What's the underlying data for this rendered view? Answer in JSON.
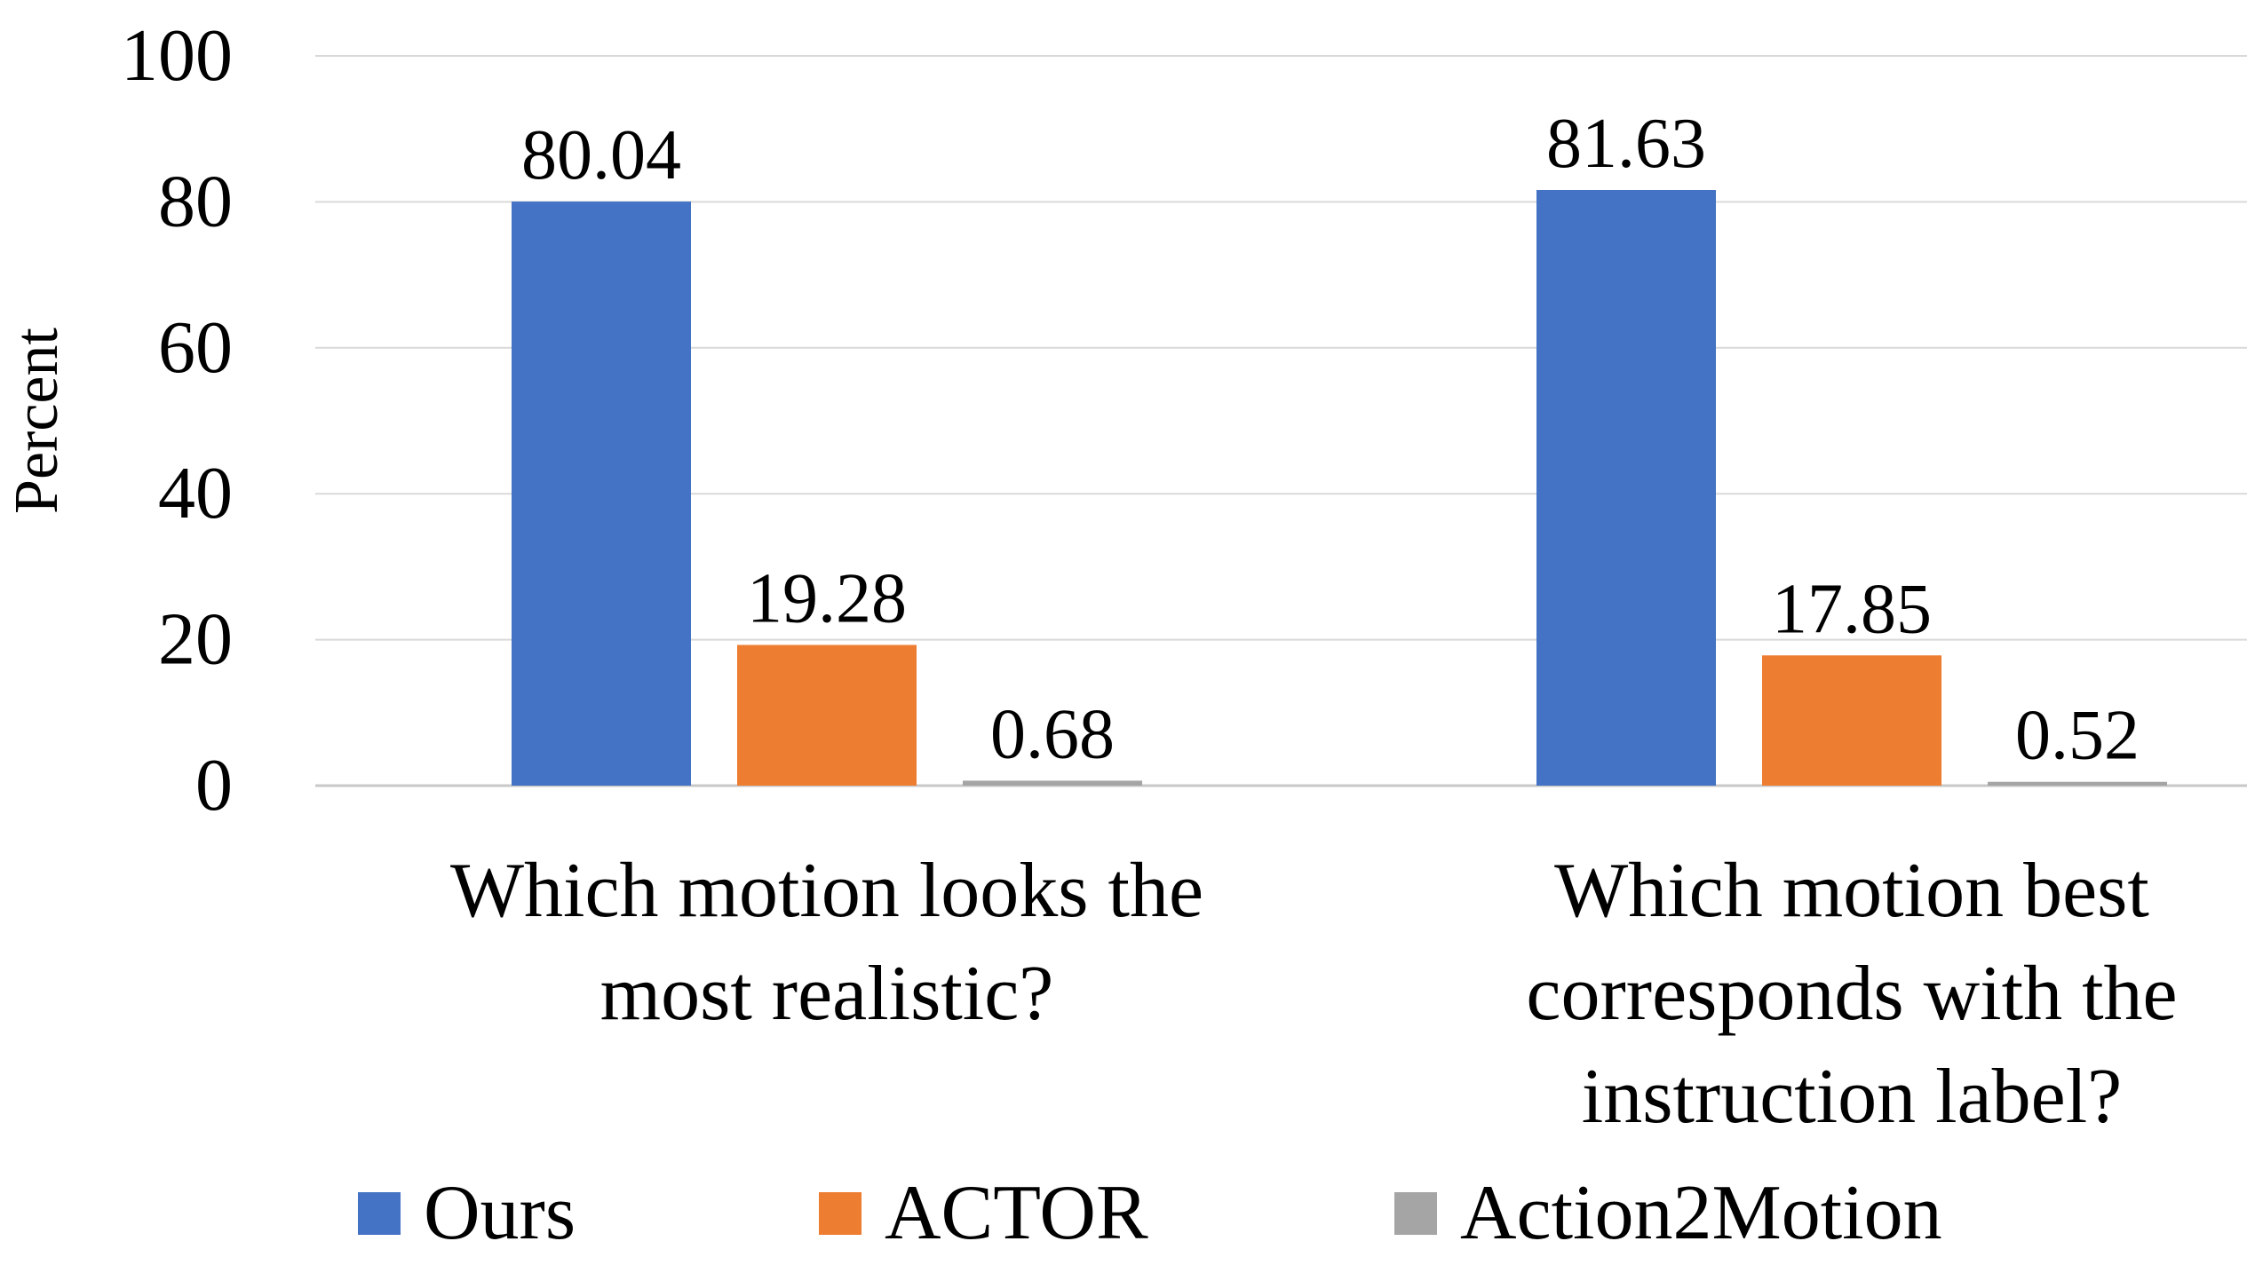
{
  "chart_data": {
    "type": "bar",
    "title": "",
    "xlabel": "",
    "ylabel": "Percent",
    "ylim": [
      0,
      100
    ],
    "yticks": [
      0,
      20,
      40,
      60,
      80,
      100
    ],
    "grid": true,
    "legend_position": "bottom",
    "categories": [
      [
        "Which motion looks the",
        "most realistic?"
      ],
      [
        "Which motion best",
        "corresponds with the",
        "instruction label?"
      ]
    ],
    "series": [
      {
        "name": "Ours",
        "color": "#4472C4",
        "values": [
          80.04,
          81.63
        ],
        "labels": [
          "80.04",
          "81.63"
        ]
      },
      {
        "name": "ACTOR",
        "color": "#ED7D31",
        "values": [
          19.28,
          17.85
        ],
        "labels": [
          "19.28",
          "17.85"
        ]
      },
      {
        "name": "Action2Motion",
        "color": "#A5A5A5",
        "values": [
          0.68,
          0.52
        ],
        "labels": [
          "0.68",
          "0.52"
        ]
      }
    ]
  }
}
